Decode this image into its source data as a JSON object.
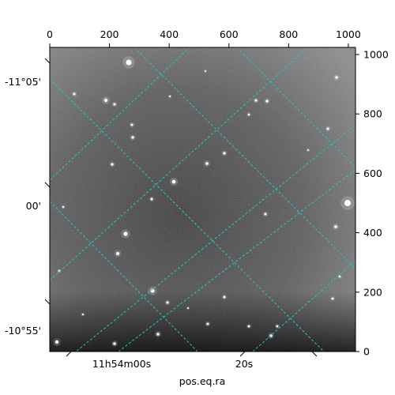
{
  "figure": {
    "top_axis_ticks": [
      "0",
      "200",
      "400",
      "600",
      "800",
      "1000"
    ],
    "right_axis_ticks": [
      "0",
      "200",
      "400",
      "600",
      "800",
      "1000"
    ],
    "left_axis_labels": [
      "-11°05'",
      "00'",
      "-10°55'"
    ],
    "bottom_axis_labels": [
      "11h54m00s",
      "20s"
    ],
    "bottom_axis_title": "pos.eq.ra",
    "grid_color": "#20c8c8",
    "image_style": "grayscale star field"
  }
}
